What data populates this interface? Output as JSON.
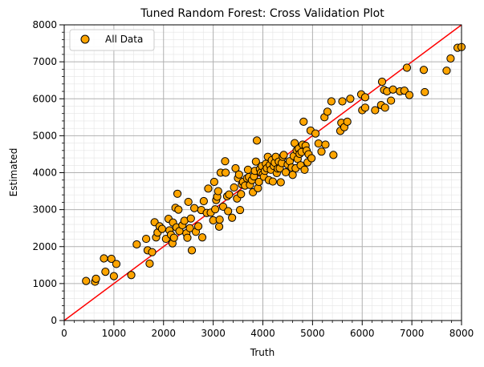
{
  "chart_data": {
    "type": "scatter",
    "title": "Tuned Random Forest: Cross Validation Plot",
    "xlabel": "Truth",
    "ylabel": "Estimated",
    "xlim": [
      0,
      8000
    ],
    "ylim": [
      0,
      8000
    ],
    "xticks": [
      "0",
      "1000",
      "2000",
      "3000",
      "4000",
      "5000",
      "6000",
      "7000",
      "8000"
    ],
    "yticks": [
      "0",
      "1000",
      "2000",
      "3000",
      "4000",
      "5000",
      "6000",
      "7000",
      "8000"
    ],
    "grid": true,
    "minor_grid": true,
    "legend": {
      "position": "top-left",
      "entries": [
        "All Data"
      ]
    },
    "colors": {
      "points": "#ffa500",
      "point_edge": "#000000",
      "reference_line": "#ff0000"
    },
    "reference_line": {
      "from": [
        0,
        0
      ],
      "to": [
        8000,
        8000
      ]
    },
    "series": [
      {
        "name": "All Data",
        "points": [
          [
            440,
            1070
          ],
          [
            620,
            1050
          ],
          [
            640,
            1130
          ],
          [
            800,
            1680
          ],
          [
            830,
            1320
          ],
          [
            950,
            1670
          ],
          [
            1000,
            1200
          ],
          [
            1050,
            1530
          ],
          [
            1350,
            1230
          ],
          [
            1460,
            2060
          ],
          [
            1650,
            2210
          ],
          [
            1680,
            1900
          ],
          [
            1720,
            1540
          ],
          [
            1770,
            1850
          ],
          [
            1820,
            2660
          ],
          [
            1850,
            2250
          ],
          [
            1880,
            2380
          ],
          [
            1920,
            2550
          ],
          [
            1970,
            2480
          ],
          [
            2050,
            2210
          ],
          [
            2100,
            2750
          ],
          [
            2120,
            2440
          ],
          [
            2150,
            2320
          ],
          [
            2180,
            2090
          ],
          [
            2190,
            2650
          ],
          [
            2210,
            2240
          ],
          [
            2240,
            3050
          ],
          [
            2260,
            2520
          ],
          [
            2280,
            3430
          ],
          [
            2300,
            3000
          ],
          [
            2320,
            2420
          ],
          [
            2380,
            2580
          ],
          [
            2420,
            2700
          ],
          [
            2460,
            2360
          ],
          [
            2480,
            2240
          ],
          [
            2500,
            3210
          ],
          [
            2530,
            2500
          ],
          [
            2550,
            2760
          ],
          [
            2570,
            1900
          ],
          [
            2620,
            3040
          ],
          [
            2650,
            2400
          ],
          [
            2700,
            2550
          ],
          [
            2760,
            2990
          ],
          [
            2780,
            2250
          ],
          [
            2810,
            3230
          ],
          [
            2870,
            2910
          ],
          [
            2900,
            3570
          ],
          [
            2950,
            2920
          ],
          [
            3000,
            2710
          ],
          [
            3020,
            3750
          ],
          [
            3040,
            3010
          ],
          [
            3060,
            3260
          ],
          [
            3080,
            3350
          ],
          [
            3100,
            3500
          ],
          [
            3120,
            2540
          ],
          [
            3130,
            2730
          ],
          [
            3150,
            4000
          ],
          [
            3200,
            3080
          ],
          [
            3240,
            4310
          ],
          [
            3250,
            4000
          ],
          [
            3280,
            3360
          ],
          [
            3300,
            2960
          ],
          [
            3320,
            3410
          ],
          [
            3380,
            2780
          ],
          [
            3420,
            3600
          ],
          [
            3450,
            4120
          ],
          [
            3480,
            3300
          ],
          [
            3500,
            3850
          ],
          [
            3520,
            3950
          ],
          [
            3540,
            2990
          ],
          [
            3560,
            3420
          ],
          [
            3580,
            3680
          ],
          [
            3600,
            3750
          ],
          [
            3640,
            3650
          ],
          [
            3680,
            3850
          ],
          [
            3700,
            4080
          ],
          [
            3720,
            3880
          ],
          [
            3740,
            3670
          ],
          [
            3780,
            3800
          ],
          [
            3800,
            3470
          ],
          [
            3820,
            3900
          ],
          [
            3840,
            4050
          ],
          [
            3860,
            4300
          ],
          [
            3880,
            4870
          ],
          [
            3900,
            3580
          ],
          [
            3920,
            3750
          ],
          [
            3940,
            4100
          ],
          [
            3960,
            4000
          ],
          [
            3980,
            4180
          ],
          [
            4000,
            3960
          ],
          [
            4020,
            3890
          ],
          [
            4040,
            4050
          ],
          [
            4060,
            4240
          ],
          [
            4080,
            4120
          ],
          [
            4100,
            4430
          ],
          [
            4120,
            3800
          ],
          [
            4140,
            4210
          ],
          [
            4160,
            4080
          ],
          [
            4180,
            4340
          ],
          [
            4200,
            3760
          ],
          [
            4220,
            4180
          ],
          [
            4240,
            4270
          ],
          [
            4260,
            4430
          ],
          [
            4280,
            3990
          ],
          [
            4300,
            4110
          ],
          [
            4320,
            4300
          ],
          [
            4340,
            4120
          ],
          [
            4360,
            3740
          ],
          [
            4380,
            4260
          ],
          [
            4400,
            4430
          ],
          [
            4420,
            4480
          ],
          [
            4460,
            4010
          ],
          [
            4500,
            4220
          ],
          [
            4540,
            4310
          ],
          [
            4580,
            4140
          ],
          [
            4600,
            3940
          ],
          [
            4620,
            4450
          ],
          [
            4640,
            4800
          ],
          [
            4660,
            4120
          ],
          [
            4680,
            4600
          ],
          [
            4700,
            4370
          ],
          [
            4720,
            4650
          ],
          [
            4740,
            4510
          ],
          [
            4760,
            4200
          ],
          [
            4780,
            4560
          ],
          [
            4800,
            4760
          ],
          [
            4820,
            5380
          ],
          [
            4840,
            4080
          ],
          [
            4860,
            4730
          ],
          [
            4880,
            4600
          ],
          [
            4900,
            4280
          ],
          [
            4920,
            4500
          ],
          [
            4960,
            5140
          ],
          [
            4980,
            4390
          ],
          [
            5060,
            5060
          ],
          [
            5120,
            4790
          ],
          [
            5180,
            4570
          ],
          [
            5240,
            5500
          ],
          [
            5260,
            4760
          ],
          [
            5300,
            5650
          ],
          [
            5380,
            5930
          ],
          [
            5420,
            4480
          ],
          [
            5560,
            5130
          ],
          [
            5580,
            5350
          ],
          [
            5600,
            5930
          ],
          [
            5640,
            5230
          ],
          [
            5700,
            5380
          ],
          [
            5760,
            6000
          ],
          [
            5980,
            6120
          ],
          [
            6000,
            5690
          ],
          [
            6060,
            5760
          ],
          [
            6060,
            6040
          ],
          [
            6260,
            5690
          ],
          [
            6380,
            5830
          ],
          [
            6400,
            6460
          ],
          [
            6440,
            6240
          ],
          [
            6460,
            5760
          ],
          [
            6500,
            6200
          ],
          [
            6580,
            5950
          ],
          [
            6620,
            6250
          ],
          [
            6760,
            6200
          ],
          [
            6850,
            6220
          ],
          [
            6900,
            6840
          ],
          [
            6950,
            6100
          ],
          [
            7240,
            6780
          ],
          [
            7260,
            6180
          ],
          [
            7700,
            6760
          ],
          [
            7780,
            7090
          ],
          [
            7920,
            7380
          ],
          [
            8000,
            7400
          ]
        ]
      }
    ]
  }
}
